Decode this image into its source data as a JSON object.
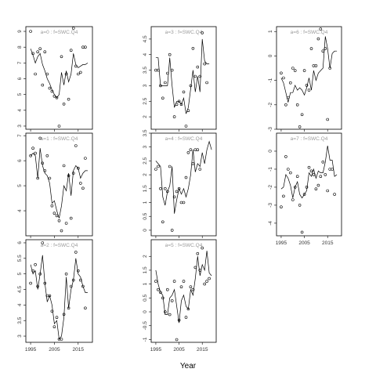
{
  "figure": {
    "x_axis_title": "Year",
    "x_ticks": [
      1995,
      2005,
      2015
    ],
    "x_tick_labels": [
      "1995",
      "2005",
      "2015"
    ],
    "x_range": [
      1993,
      2021
    ]
  },
  "chart_data": [
    {
      "type": "scatter",
      "title": "a=0  :  f=SWC.Q4",
      "xlabel": "Year",
      "ylim": [
        2.8,
        9.3
      ],
      "yticks": [
        3,
        4,
        5,
        6,
        7,
        8,
        9
      ],
      "series": [
        {
          "mark": "points",
          "x": [
            1995,
            1996,
            1997,
            1998,
            1999,
            2000,
            2001,
            2002,
            2003,
            2004,
            2005,
            2006,
            2007,
            2008,
            2009,
            2010,
            2011,
            2012,
            2013,
            2014,
            2015,
            2016,
            2017,
            2018,
            2019,
            2020
          ],
          "y": [
            9.0,
            7.6,
            6.3,
            7.7,
            7.9,
            5.6,
            7.7,
            6.3,
            5.4,
            5.2,
            4.9,
            4.8,
            3.0,
            7.4,
            4.4,
            6.3,
            4.7,
            7.8,
            9.2,
            6.8,
            6.3,
            6.4,
            8.0,
            8.0,
            null,
            null
          ]
        },
        {
          "mark": "line",
          "x": [
            1995,
            1996,
            1997,
            1998,
            1999,
            2000,
            2001,
            2002,
            2003,
            2004,
            2005,
            2006,
            2007,
            2008,
            2009,
            2010,
            2011,
            2012,
            2013,
            2014,
            2015,
            2016,
            2017,
            2018,
            2019
          ],
          "y": [
            7.9,
            7.5,
            7.0,
            7.4,
            7.6,
            6.9,
            6.5,
            6.0,
            5.7,
            5.3,
            5.0,
            4.8,
            5.0,
            6.4,
            5.6,
            6.5,
            5.8,
            6.3,
            7.6,
            6.9,
            6.7,
            6.8,
            6.9,
            6.9,
            7.0
          ]
        }
      ]
    },
    {
      "type": "scatter",
      "title": "a=1  :  f=SWC.Q4",
      "xlabel": "Year",
      "ylim": [
        3.0,
        7.1
      ],
      "yticks": [
        4,
        5,
        6,
        7
      ],
      "series": [
        {
          "mark": "points",
          "x": [
            1995,
            1996,
            1997,
            1998,
            1999,
            2000,
            2001,
            2002,
            2003,
            2004,
            2005,
            2006,
            2007,
            2008,
            2009,
            2010,
            2011,
            2012,
            2013,
            2014,
            2015,
            2016,
            2017,
            2018,
            2019
          ],
          "y": [
            6.2,
            6.5,
            6.3,
            5.3,
            6.9,
            5.9,
            5.6,
            6.2,
            5.3,
            4.2,
            3.9,
            3.8,
            3.6,
            3.2,
            5.8,
            3.5,
            5.4,
            3.7,
            5.5,
            6.6,
            5.7,
            5.1,
            4.9,
            6.1,
            null
          ]
        },
        {
          "mark": "line",
          "x": [
            1995,
            1996,
            1997,
            1998,
            1999,
            2000,
            2001,
            2002,
            2003,
            2004,
            2005,
            2006,
            2007,
            2008,
            2009,
            2010,
            2011,
            2012,
            2013,
            2014,
            2015,
            2016,
            2017,
            2018,
            2019
          ],
          "y": [
            6.2,
            6.3,
            6.2,
            5.3,
            6.5,
            5.8,
            5.5,
            5.4,
            5.1,
            4.3,
            4.4,
            4.0,
            3.7,
            4.2,
            5.0,
            4.8,
            5.5,
            4.6,
            5.6,
            5.8,
            5.7,
            5.3,
            5.5,
            5.6,
            5.6
          ]
        }
      ]
    },
    {
      "type": "scatter",
      "title": "a=2  :  f=SWC.Q4",
      "xlabel": "Year",
      "ylim": [
        2.8,
        6.1
      ],
      "yticks": [
        3.0,
        3.5,
        4.0,
        4.5,
        5.0,
        5.5,
        6.0
      ],
      "series": [
        {
          "mark": "points",
          "x": [
            1995,
            1996,
            1997,
            1998,
            1999,
            2000,
            2001,
            2002,
            2003,
            2004,
            2005,
            2006,
            2007,
            2008,
            2009,
            2010,
            2011,
            2012,
            2013,
            2014,
            2015,
            2016,
            2017,
            2018,
            2019
          ],
          "y": [
            4.7,
            5.1,
            5.3,
            4.6,
            5.0,
            6.0,
            4.7,
            4.3,
            4.3,
            3.8,
            3.3,
            3.6,
            2.9,
            2.9,
            3.7,
            5.0,
            3.9,
            4.6,
            4.8,
            5.7,
            5.1,
            4.8,
            4.6,
            3.9,
            null
          ]
        },
        {
          "mark": "line",
          "x": [
            1995,
            1996,
            1997,
            1998,
            1999,
            2000,
            2001,
            2002,
            2003,
            2004,
            2005,
            2006,
            2007,
            2008,
            2009,
            2010,
            2011,
            2012,
            2013,
            2014,
            2015,
            2016,
            2017,
            2018,
            2019
          ],
          "y": [
            5.3,
            5.0,
            5.1,
            4.5,
            5.0,
            5.6,
            4.7,
            4.1,
            4.3,
            4.0,
            3.4,
            3.5,
            2.9,
            3.0,
            3.6,
            4.9,
            3.9,
            4.5,
            4.8,
            5.5,
            5.0,
            4.9,
            4.6,
            4.4,
            4.4
          ]
        }
      ]
    },
    {
      "type": "scatter",
      "title": "a=3  :  f=SWC.Q4",
      "xlabel": "Year",
      "ylim": [
        1.6,
        4.9
      ],
      "yticks": [
        2.0,
        2.5,
        3.0,
        3.5,
        4.0,
        4.5
      ],
      "series": [
        {
          "mark": "points",
          "x": [
            1995,
            1996,
            1997,
            1998,
            1999,
            2000,
            2001,
            2002,
            2003,
            2004,
            2005,
            2006,
            2007,
            2008,
            2009,
            2010,
            2011,
            2012,
            2013,
            2014,
            2015,
            2016,
            2017,
            2018,
            2019
          ],
          "y": [
            3.5,
            3.5,
            3.0,
            2.6,
            3.1,
            3.4,
            4.0,
            3.5,
            2.0,
            2.4,
            2.5,
            2.4,
            2.8,
            1.7,
            2.2,
            3.0,
            4.2,
            3.3,
            3.6,
            3.3,
            4.7,
            3.7,
            3.1,
            null,
            null
          ]
        },
        {
          "mark": "line",
          "x": [
            1995,
            1996,
            1997,
            1998,
            1999,
            2000,
            2001,
            2002,
            2003,
            2004,
            2005,
            2006,
            2007,
            2008,
            2009,
            2010,
            2011,
            2012,
            2013,
            2014,
            2015,
            2016,
            2017,
            2018
          ],
          "y": [
            3.9,
            3.9,
            3.0,
            3.0,
            3.0,
            3.0,
            3.9,
            3.0,
            2.3,
            2.5,
            2.5,
            2.4,
            2.6,
            2.1,
            2.3,
            2.9,
            3.5,
            2.8,
            3.3,
            2.8,
            4.5,
            3.8,
            3.7,
            3.7
          ]
        }
      ]
    },
    {
      "type": "scatter",
      "title": "a=4  :  f=SWC.Q4",
      "xlabel": "Year",
      "ylim": [
        -0.2,
        3.5
      ],
      "yticks": [
        0.0,
        0.5,
        1.0,
        1.5,
        2.0,
        2.5,
        3.0,
        3.5
      ],
      "series": [
        {
          "mark": "points",
          "x": [
            1995,
            1996,
            1997,
            1998,
            1999,
            2000,
            2001,
            2002,
            2003,
            2004,
            2005,
            2006,
            2007,
            2008,
            2009,
            2010,
            2011,
            2012,
            2013,
            2014,
            2015,
            2016,
            2017,
            2018,
            2019
          ],
          "y": [
            2.2,
            2.3,
            1.5,
            0.3,
            1.5,
            1.4,
            2.3,
            0.0,
            1.2,
            1.4,
            1.5,
            1.0,
            1.0,
            1.9,
            2.8,
            2.9,
            2.4,
            2.9,
            2.9,
            2.2,
            null,
            null,
            null,
            null,
            null
          ]
        },
        {
          "mark": "line",
          "x": [
            1995,
            1996,
            1997,
            1998,
            1999,
            2000,
            2001,
            2002,
            2003,
            2004,
            2005,
            2006,
            2007,
            2008,
            2009,
            2010,
            2011,
            2012,
            2013,
            2014,
            2015,
            2016,
            2017,
            2018,
            2019
          ],
          "y": [
            2.5,
            2.4,
            2.3,
            1.2,
            0.9,
            1.4,
            1.6,
            2.3,
            0.6,
            1.1,
            1.5,
            1.3,
            1.5,
            1.2,
            1.5,
            2.0,
            2.9,
            2.1,
            2.4,
            2.3,
            2.8,
            2.4,
            2.9,
            3.2,
            2.9
          ]
        }
      ]
    },
    {
      "type": "scatter",
      "title": "a=5  :  f=SWC.Q4",
      "xlabel": "Year",
      "ylim": [
        -1.1,
        2.6
      ],
      "yticks": [
        -1.0,
        -0.5,
        0.0,
        0.5,
        1.0,
        1.5,
        2.0
      ],
      "series": [
        {
          "mark": "points",
          "x": [
            1995,
            1996,
            1997,
            1998,
            1999,
            2000,
            2001,
            2002,
            2003,
            2004,
            2005,
            2006,
            2007,
            2008,
            2009,
            2010,
            2011,
            2012,
            2013,
            2014,
            2015,
            2016,
            2017,
            2018,
            2019
          ],
          "y": [
            1.1,
            0.8,
            0.7,
            0.5,
            0.0,
            0.8,
            -0.1,
            0.4,
            1.1,
            -1.0,
            -0.3,
            0.9,
            1.1,
            -0.2,
            0.1,
            0.9,
            0.8,
            1.6,
            2.1,
            1.5,
            2.3,
            1.0,
            1.1,
            1.2,
            null
          ]
        },
        {
          "mark": "line",
          "x": [
            1995,
            1996,
            1997,
            1998,
            1999,
            2000,
            2001,
            2002,
            2003,
            2004,
            2005,
            2006,
            2007,
            2008,
            2009,
            2010,
            2011,
            2012,
            2013,
            2014,
            2015,
            2016,
            2017,
            2018,
            2019
          ],
          "y": [
            1.5,
            1.0,
            0.7,
            0.6,
            -0.1,
            -0.1,
            0.5,
            0.6,
            0.8,
            0.2,
            -0.4,
            0.4,
            0.6,
            0.2,
            0.1,
            0.8,
            0.6,
            1.2,
            2.0,
            1.3,
            1.7,
            1.5,
            2.2,
            1.4,
            1.3
          ]
        }
      ]
    },
    {
      "type": "scatter",
      "title": "a=6  :  f=SWC.Q4",
      "xlabel": "Year",
      "ylim": [
        -3.0,
        1.2
      ],
      "yticks": [
        -3,
        -2,
        -1,
        0,
        1
      ],
      "series": [
        {
          "mark": "points",
          "x": [
            1995,
            1996,
            1997,
            1998,
            1999,
            2000,
            2001,
            2002,
            2003,
            2004,
            2005,
            2006,
            2007,
            2008,
            2009,
            2010,
            2011,
            2012,
            2013,
            2014,
            2015,
            2016,
            2017,
            2018,
            2019
          ],
          "y": [
            -0.7,
            -0.9,
            -2.0,
            -1.7,
            -1.1,
            -0.5,
            -0.6,
            -2.0,
            -2.9,
            -2.4,
            -0.6,
            -1.2,
            -1.4,
            0.3,
            -0.4,
            -0.4,
            0.7,
            1.1,
            0.2,
            0.3,
            -2.6,
            -0.5,
            null,
            null,
            null
          ]
        },
        {
          "mark": "line",
          "x": [
            1995,
            1996,
            1997,
            1998,
            1999,
            2000,
            2001,
            2002,
            2003,
            2004,
            2005,
            2006,
            2007,
            2008,
            2009,
            2010,
            2011,
            2012,
            2013,
            2014,
            2015,
            2016,
            2017,
            2018,
            2019
          ],
          "y": [
            -0.9,
            -1.1,
            -1.5,
            -1.9,
            -1.5,
            -1.5,
            -1.2,
            -1.4,
            -1.3,
            -1.4,
            -1.6,
            -1.3,
            -0.9,
            -1.4,
            -0.6,
            -1.0,
            -0.7,
            -0.6,
            -0.5,
            0.8,
            0.3,
            -0.5,
            0.1,
            0.2,
            0.2
          ]
        }
      ]
    },
    {
      "type": "scatter",
      "title": "a=7  :  f=SWC.Q4",
      "xlabel": "Year",
      "ylim": [
        -4.7,
        1.0
      ],
      "yticks": [
        -4,
        -3,
        -2,
        -1,
        0
      ],
      "series": [
        {
          "mark": "points",
          "x": [
            1995,
            1996,
            1997,
            1998,
            1999,
            2000,
            2001,
            2002,
            2003,
            2004,
            2005,
            2006,
            2007,
            2008,
            2009,
            2010,
            2011,
            2012,
            2013,
            2014,
            2015,
            2016,
            2017,
            2018,
            2019
          ],
          "y": [
            -3.1,
            -2.5,
            -0.3,
            -1.0,
            -1.2,
            -2.7,
            -2.0,
            -1.4,
            -3.0,
            -4.5,
            -2.4,
            -2.0,
            -0.9,
            -1.1,
            -1.3,
            -2.1,
            -1.9,
            -1.4,
            -0.6,
            -1.3,
            -2.2,
            -1.0,
            -1.0,
            -2.4,
            null
          ]
        },
        {
          "mark": "line",
          "x": [
            1995,
            1996,
            1997,
            1998,
            1999,
            2000,
            2001,
            2002,
            2003,
            2004,
            2005,
            2006,
            2007,
            2008,
            2009,
            2010,
            2011,
            2012,
            2013,
            2014,
            2015,
            2016,
            2017,
            2018,
            2019
          ],
          "y": [
            -2.1,
            -2.0,
            -1.3,
            -1.5,
            -1.9,
            -2.6,
            -2.0,
            -1.7,
            -2.4,
            -2.6,
            -2.4,
            -2.2,
            -1.2,
            -1.4,
            -1.0,
            -1.5,
            -1.1,
            -1.2,
            -1.2,
            -0.6,
            0.3,
            -0.5,
            -0.5,
            -1.4,
            -1.3
          ]
        }
      ]
    }
  ]
}
